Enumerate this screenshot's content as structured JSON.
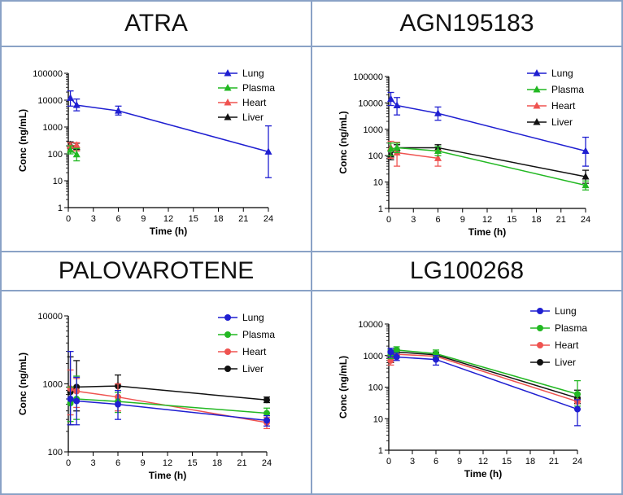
{
  "chart_data": [
    {
      "type": "line",
      "title": "ATRA",
      "xlabel": "Time (h)",
      "ylabel": "Conc (ng/mL)",
      "yscale": "log",
      "ylim": [
        1,
        100000
      ],
      "yticks": [
        1,
        10,
        100,
        1000,
        10000,
        100000
      ],
      "ytick_labels": [
        "1",
        "10",
        "100",
        "1000",
        "10000",
        "100000"
      ],
      "xlim": [
        0,
        24
      ],
      "xticks": [
        0,
        3,
        6,
        9,
        12,
        15,
        18,
        21,
        24
      ],
      "marker": "triangle",
      "legend_position": "top-right",
      "series": [
        {
          "name": "Lung",
          "color": "#1f1fd1",
          "points": [
            {
              "x": 0.25,
              "y": 12000,
              "lo": 6000,
              "hi": 22000
            },
            {
              "x": 1,
              "y": 6500,
              "lo": 4000,
              "hi": 11000
            },
            {
              "x": 6,
              "y": 4000,
              "lo": 2800,
              "hi": 6000
            },
            {
              "x": 24,
              "y": 120,
              "lo": 13,
              "hi": 1100
            }
          ]
        },
        {
          "name": "Plasma",
          "color": "#22b822",
          "points": [
            {
              "x": 0.25,
              "y": 140,
              "lo": 100,
              "hi": 200
            },
            {
              "x": 1,
              "y": 95,
              "lo": 55,
              "hi": 160
            }
          ]
        },
        {
          "name": "Heart",
          "color": "#ef5350",
          "points": [
            {
              "x": 0.25,
              "y": 200,
              "lo": 130,
              "hi": 260
            },
            {
              "x": 1,
              "y": 210,
              "lo": 130,
              "hi": 260
            }
          ]
        },
        {
          "name": "Liver",
          "color": "#111111",
          "points": [
            {
              "x": 0.25,
              "y": 220,
              "lo": 160,
              "hi": 280
            },
            {
              "x": 1,
              "y": 180,
              "lo": 130,
              "hi": 250
            }
          ]
        }
      ]
    },
    {
      "type": "line",
      "title": "AGN195183",
      "xlabel": "Time (h)",
      "ylabel": "Conc (ng/mL)",
      "yscale": "log",
      "ylim": [
        1,
        100000
      ],
      "yticks": [
        1,
        10,
        100,
        1000,
        10000,
        100000
      ],
      "ytick_labels": [
        "1",
        "10",
        "100",
        "1000",
        "10000",
        "100000"
      ],
      "xlim": [
        0,
        24
      ],
      "xticks": [
        0,
        3,
        6,
        9,
        12,
        15,
        18,
        21,
        24
      ],
      "marker": "triangle",
      "legend_position": "top-right",
      "series": [
        {
          "name": "Lung",
          "color": "#1f1fd1",
          "points": [
            {
              "x": 0.25,
              "y": 14000,
              "lo": 8000,
              "hi": 25000
            },
            {
              "x": 1,
              "y": 8000,
              "lo": 3500,
              "hi": 16000
            },
            {
              "x": 6,
              "y": 4000,
              "lo": 2200,
              "hi": 7000
            },
            {
              "x": 24,
              "y": 150,
              "lo": 40,
              "hi": 500
            }
          ]
        },
        {
          "name": "Plasma",
          "color": "#22b822",
          "points": [
            {
              "x": 0.25,
              "y": 180,
              "lo": 100,
              "hi": 300
            },
            {
              "x": 1,
              "y": 200,
              "lo": 130,
              "hi": 300
            },
            {
              "x": 6,
              "y": 150,
              "lo": 100,
              "hi": 220
            },
            {
              "x": 24,
              "y": 7.5,
              "lo": 5,
              "hi": 11
            }
          ]
        },
        {
          "name": "Heart",
          "color": "#ef5350",
          "points": [
            {
              "x": 0.25,
              "y": 200,
              "lo": 80,
              "hi": 350
            },
            {
              "x": 1,
              "y": 130,
              "lo": 40,
              "hi": 320
            },
            {
              "x": 6,
              "y": 80,
              "lo": 40,
              "hi": 160
            }
          ]
        },
        {
          "name": "Liver",
          "color": "#111111",
          "points": [
            {
              "x": 0.25,
              "y": 110,
              "lo": 70,
              "hi": 160
            },
            {
              "x": 1,
              "y": 200,
              "lo": 150,
              "hi": 260
            },
            {
              "x": 6,
              "y": 200,
              "lo": 150,
              "hi": 260
            },
            {
              "x": 24,
              "y": 16,
              "lo": 9,
              "hi": 28
            }
          ]
        }
      ]
    },
    {
      "type": "line",
      "title": "PALOVAROTENE",
      "xlabel": "Time (h)",
      "ylabel": "Conc (ng/mL)",
      "yscale": "log",
      "ylim": [
        100,
        10000
      ],
      "yticks": [
        100,
        1000,
        10000
      ],
      "ytick_labels": [
        "100",
        "1000",
        "10000"
      ],
      "xlim": [
        0,
        24
      ],
      "xticks": [
        0,
        3,
        6,
        9,
        12,
        15,
        18,
        21,
        24
      ],
      "marker": "circle",
      "legend_position": "top-right",
      "series": [
        {
          "name": "Lung",
          "color": "#1f1fd1",
          "points": [
            {
              "x": 0.25,
              "y": 600,
              "lo": 250,
              "hi": 3000
            },
            {
              "x": 1,
              "y": 560,
              "lo": 250,
              "hi": 1250
            },
            {
              "x": 6,
              "y": 500,
              "lo": 300,
              "hi": 800
            },
            {
              "x": 24,
              "y": 290,
              "lo": 240,
              "hi": 340
            }
          ]
        },
        {
          "name": "Plasma",
          "color": "#22b822",
          "points": [
            {
              "x": 0.25,
              "y": 520,
              "lo": 280,
              "hi": 900
            },
            {
              "x": 1,
              "y": 600,
              "lo": 300,
              "hi": 1300
            },
            {
              "x": 6,
              "y": 550,
              "lo": 380,
              "hi": 750
            },
            {
              "x": 24,
              "y": 370,
              "lo": 300,
              "hi": 440
            }
          ]
        },
        {
          "name": "Heart",
          "color": "#ef5350",
          "points": [
            {
              "x": 0.25,
              "y": 850,
              "lo": 350,
              "hi": 1600
            },
            {
              "x": 1,
              "y": 780,
              "lo": 450,
              "hi": 1200
            },
            {
              "x": 6,
              "y": 640,
              "lo": 400,
              "hi": 1000
            },
            {
              "x": 24,
              "y": 270,
              "lo": 220,
              "hi": 320
            }
          ]
        },
        {
          "name": "Liver",
          "color": "#111111",
          "points": [
            {
              "x": 0.25,
              "y": 760,
              "lo": 250,
              "hi": 2500
            },
            {
              "x": 1,
              "y": 900,
              "lo": 400,
              "hi": 2200
            },
            {
              "x": 6,
              "y": 930,
              "lo": 650,
              "hi": 1350
            },
            {
              "x": 24,
              "y": 580,
              "lo": 530,
              "hi": 640
            }
          ]
        }
      ]
    },
    {
      "type": "line",
      "title": "LG100268",
      "xlabel": "Time (h)",
      "ylabel": "Conc (ng/mL)",
      "yscale": "log",
      "ylim": [
        1,
        10000
      ],
      "yticks": [
        1,
        10,
        100,
        1000,
        10000
      ],
      "ytick_labels": [
        "1",
        "10",
        "100",
        "1000",
        "10000"
      ],
      "xlim": [
        0,
        24
      ],
      "xticks": [
        0,
        3,
        6,
        9,
        12,
        15,
        18,
        21,
        24
      ],
      "marker": "circle",
      "legend_position": "top-right",
      "series": [
        {
          "name": "Lung",
          "color": "#1f1fd1",
          "points": [
            {
              "x": 0.25,
              "y": 1300,
              "lo": 900,
              "hi": 1700
            },
            {
              "x": 1,
              "y": 900,
              "lo": 700,
              "hi": 1200
            },
            {
              "x": 6,
              "y": 750,
              "lo": 500,
              "hi": 1000
            },
            {
              "x": 24,
              "y": 20,
              "lo": 6,
              "hi": 40
            }
          ]
        },
        {
          "name": "Plasma",
          "color": "#22b822",
          "points": [
            {
              "x": 0.25,
              "y": 1100,
              "lo": 800,
              "hi": 1500
            },
            {
              "x": 1,
              "y": 1500,
              "lo": 1200,
              "hi": 1900
            },
            {
              "x": 6,
              "y": 1150,
              "lo": 900,
              "hi": 1500
            },
            {
              "x": 24,
              "y": 60,
              "lo": 25,
              "hi": 160
            }
          ]
        },
        {
          "name": "Heart",
          "color": "#ef5350",
          "points": [
            {
              "x": 0.25,
              "y": 700,
              "lo": 500,
              "hi": 1000
            },
            {
              "x": 1,
              "y": 1100,
              "lo": 900,
              "hi": 1400
            },
            {
              "x": 6,
              "y": 950,
              "lo": 750,
              "hi": 1200
            },
            {
              "x": 24,
              "y": 35,
              "lo": 20,
              "hi": 60
            }
          ]
        },
        {
          "name": "Liver",
          "color": "#111111",
          "points": [
            {
              "x": 0.25,
              "y": 900,
              "lo": 600,
              "hi": 1300
            },
            {
              "x": 1,
              "y": 1300,
              "lo": 1000,
              "hi": 1600
            },
            {
              "x": 6,
              "y": 1050,
              "lo": 850,
              "hi": 1300
            },
            {
              "x": 24,
              "y": 45,
              "lo": 30,
              "hi": 80
            }
          ]
        }
      ]
    }
  ]
}
